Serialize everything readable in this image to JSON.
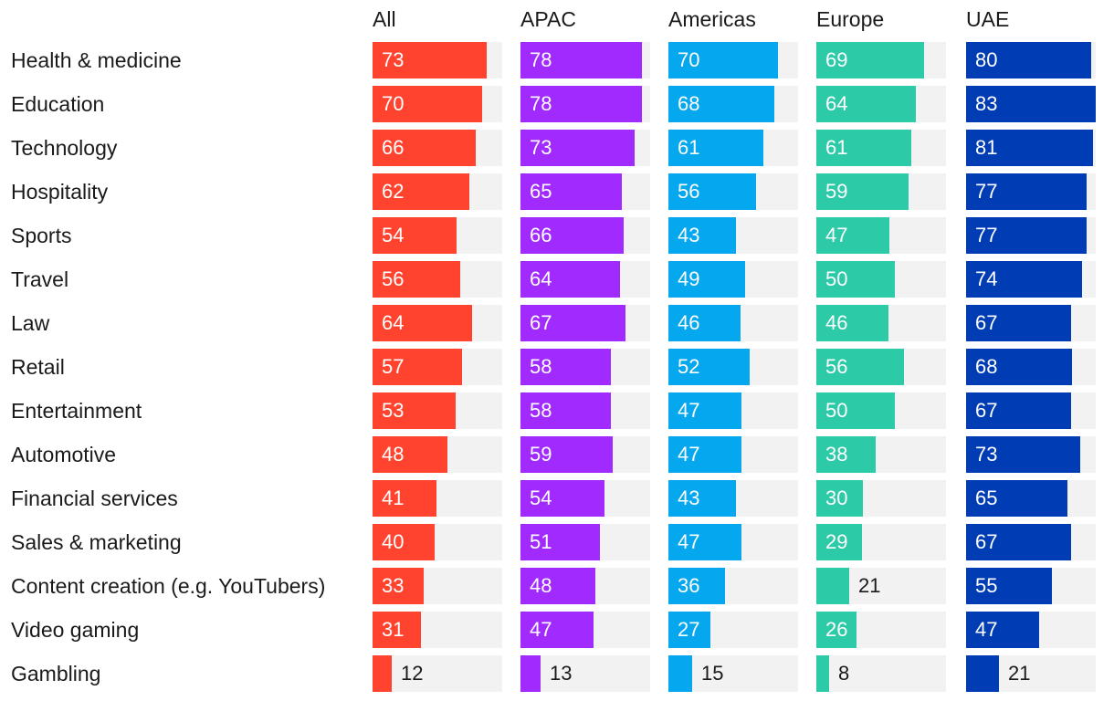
{
  "chart_data": {
    "type": "bar",
    "orientation": "horizontal",
    "title": "",
    "xlabel": "",
    "ylabel": "",
    "xlim": [
      0,
      83
    ],
    "categories": [
      "Health & medicine",
      "Education",
      "Technology",
      "Hospitality",
      "Sports",
      "Travel",
      "Law",
      "Retail",
      "Entertainment",
      "Automotive",
      "Financial services",
      "Sales & marketing",
      "Content creation (e.g. YouTubers)",
      "Video gaming",
      "Gambling"
    ],
    "series": [
      {
        "name": "All",
        "color": "#ff432e",
        "values": [
          73,
          70,
          66,
          62,
          54,
          56,
          64,
          57,
          53,
          48,
          41,
          40,
          33,
          31,
          12
        ]
      },
      {
        "name": "APAC",
        "color": "#a12bfe",
        "values": [
          78,
          78,
          73,
          65,
          66,
          64,
          67,
          58,
          58,
          59,
          54,
          51,
          48,
          47,
          13
        ]
      },
      {
        "name": "Americas",
        "color": "#05a7ef",
        "values": [
          70,
          68,
          61,
          56,
          43,
          49,
          46,
          52,
          47,
          47,
          43,
          47,
          36,
          27,
          15
        ]
      },
      {
        "name": "Europe",
        "color": "#2dcaa8",
        "values": [
          69,
          64,
          61,
          59,
          47,
          50,
          46,
          56,
          50,
          38,
          30,
          29,
          21,
          26,
          8
        ]
      },
      {
        "name": "UAE",
        "color": "#003cb4",
        "values": [
          80,
          83,
          81,
          77,
          77,
          74,
          67,
          68,
          67,
          73,
          65,
          67,
          55,
          47,
          21
        ]
      }
    ]
  }
}
